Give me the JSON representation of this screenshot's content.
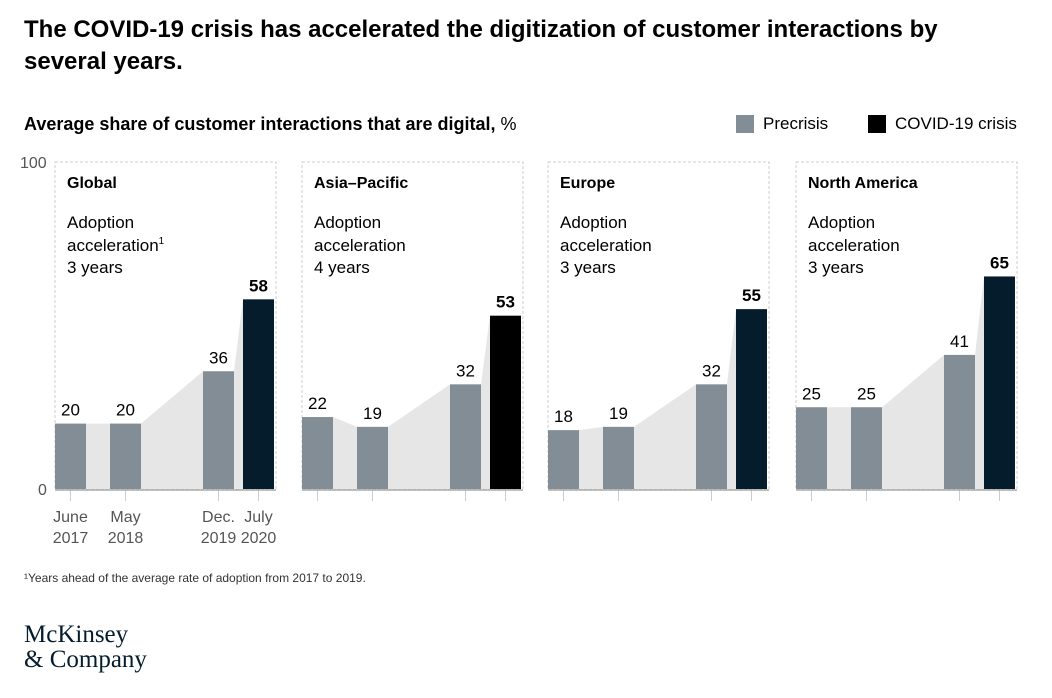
{
  "title": "The COVID-19 crisis has accelerated the digitization of customer interactions by several years.",
  "footnote": "¹Years ahead of the average rate of adoption from 2017 to 2019.",
  "logo": [
    "McKinsey",
    "& Company"
  ],
  "chart_data": {
    "type": "bar",
    "title": "Average share of customer interactions that are digital",
    "unit": "%",
    "ylim": [
      0,
      100
    ],
    "yticks": [
      "0",
      "100"
    ],
    "categories": [
      "June 2017",
      "May 2018",
      "Dec. 2019",
      "July 2020"
    ],
    "legend": [
      {
        "name": "Precrisis",
        "color": "#838d96"
      },
      {
        "name": "COVID-19 crisis",
        "color": "#000000"
      }
    ],
    "panels": [
      {
        "name": "Global",
        "note": [
          "Adoption",
          "acceleration",
          "3 years"
        ],
        "values": [
          20,
          20,
          36,
          58
        ],
        "crisis_color": "#051c2c"
      },
      {
        "name": "Asia–Pacific",
        "note": [
          "Adoption",
          "acceleration",
          "4 years"
        ],
        "values": [
          22,
          19,
          32,
          53
        ],
        "crisis_color": "#000000"
      },
      {
        "name": "Europe",
        "note": [
          "Adoption",
          "acceleration",
          "3 years"
        ],
        "values": [
          18,
          19,
          32,
          55
        ],
        "crisis_color": "#051c2c"
      },
      {
        "name": "North America",
        "note": [
          "Adoption",
          "acceleration",
          "3 years"
        ],
        "values": [
          25,
          25,
          41,
          65
        ],
        "crisis_color": "#051c2c"
      }
    ]
  }
}
